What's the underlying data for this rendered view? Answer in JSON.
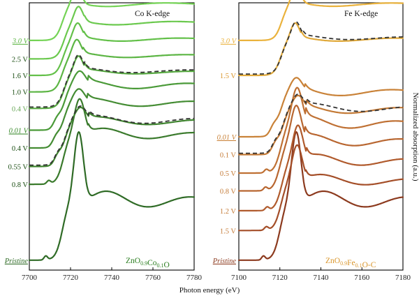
{
  "x_axis_label": "Photon energy (eV)",
  "y_axis_label": "Normalized absorption (a.u.)",
  "chart_data": [
    {
      "type": "line",
      "title": "Co K-edge",
      "xlim": [
        7700,
        7780
      ],
      "xticks": [
        "7700",
        "7720",
        "7740",
        "7760",
        "7780"
      ],
      "sample_label": {
        "base": "ZnO",
        "s1": "0.9",
        "mid": "Co",
        "s2": "0.1",
        "tail": "O"
      },
      "sample_color": "#2a7d1f",
      "edge_energy": 7716,
      "series": [
        {
          "label": "Pristine",
          "color": "#2f6b26",
          "baseline": 0,
          "style": "pristine",
          "underline": true
        },
        {
          "label": "0.8 V",
          "color": "#3a7a2c",
          "baseline": 1.15,
          "style": "oxide"
        },
        {
          "label": "0.55 V",
          "color": "#3f842f",
          "baseline": 1.42,
          "style": "metal"
        },
        {
          "label": "0.4 V",
          "color": "#448c33",
          "baseline": 1.7,
          "style": "metal"
        },
        {
          "label": "0.01 V",
          "color": "#4a9a38",
          "baseline": 1.97,
          "style": "metal",
          "underline": true
        },
        {
          "label": "0.4 V",
          "color": "#55a83f",
          "baseline": 2.3,
          "style": "flat"
        },
        {
          "label": "1.0 V",
          "color": "#5cb544",
          "baseline": 2.55,
          "style": "flat"
        },
        {
          "label": "1.6 V",
          "color": "#63c049",
          "baseline": 2.8,
          "style": "flat"
        },
        {
          "label": "2.5 V",
          "color": "#6bc94e",
          "baseline": 3.05,
          "style": "flat"
        },
        {
          "label": "3.0 V",
          "color": "#74d355",
          "baseline": 3.33,
          "style": "flat",
          "underline": true
        }
      ],
      "label_colors": [
        "#2f6b26",
        "#1a4d12",
        "#1a4d12",
        "#1a4d12",
        "#3a8a2c",
        "#6ba85a",
        "#1a4d12",
        "#1a4d12",
        "#1a4d12",
        "#5cb544"
      ]
    },
    {
      "type": "line",
      "title": "Fe K-edge",
      "xlim": [
        7100,
        7180
      ],
      "xticks": [
        "7100",
        "7120",
        "7140",
        "7160",
        "7180"
      ],
      "sample_label": {
        "base": "ZnO",
        "s1": "0.9",
        "mid": "Fe",
        "s2": "0.1",
        "tail": "O-C"
      },
      "sample_color": "#d9952a",
      "edge_energy": 7120,
      "series": [
        {
          "label": "Pristine",
          "color": "#8c3a1e",
          "baseline": 0,
          "style": "pristine",
          "underline": true
        },
        {
          "label": "1.5 V",
          "color": "#a44e28",
          "baseline": 0.45,
          "style": "oxide"
        },
        {
          "label": "1.2 V",
          "color": "#b05a2c",
          "baseline": 0.75,
          "style": "oxide"
        },
        {
          "label": "0.8 V",
          "color": "#b86630",
          "baseline": 1.05,
          "style": "oxide"
        },
        {
          "label": "0.5 V",
          "color": "#bf7033",
          "baseline": 1.32,
          "style": "oxide"
        },
        {
          "label": "0.1 V",
          "color": "#c47a36",
          "baseline": 1.6,
          "style": "metal"
        },
        {
          "label": "0.01 V",
          "color": "#c98238",
          "baseline": 1.87,
          "style": "metal",
          "underline": true
        },
        {
          "label": "1.5 V",
          "color": "#e0a93a",
          "baseline": 2.8,
          "style": "flat"
        },
        {
          "label": "3.0 V",
          "color": "#eab23c",
          "baseline": 3.33,
          "style": "flat",
          "underline": true
        }
      ],
      "label_colors": [
        "#8c3a1e",
        "#c47a36",
        "#c47a36",
        "#c47a36",
        "#c47a36",
        "#c47a36",
        "#c98238",
        "#d9952a",
        "#eab23c"
      ]
    }
  ]
}
